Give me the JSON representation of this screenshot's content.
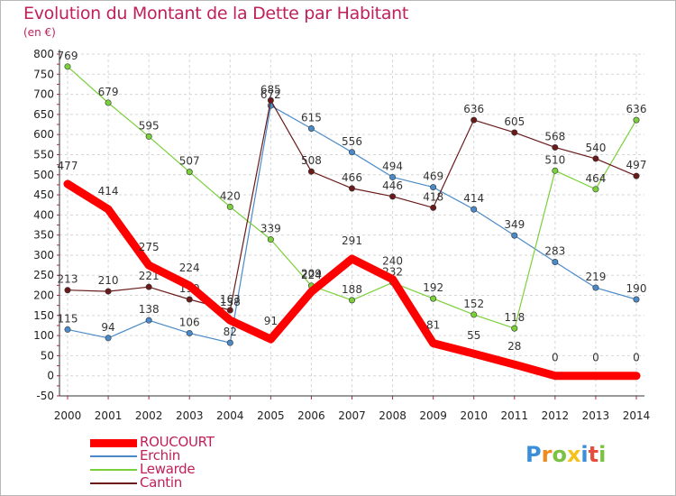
{
  "header": {
    "title": "Evolution du Montant de la Dette par Habitant",
    "unit": "(en €)"
  },
  "logo": {
    "text": "Proxiti",
    "letters": [
      {
        "ch": "P",
        "color": "#3a8fd8"
      },
      {
        "ch": "r",
        "color": "#f08a1e"
      },
      {
        "ch": "o",
        "color": "#7cc242"
      },
      {
        "ch": "x",
        "color": "#f5c21b"
      },
      {
        "ch": "i",
        "color": "#3a8fd8"
      },
      {
        "ch": "t",
        "color": "#e84c3d"
      },
      {
        "ch": "i",
        "color": "#7cc242"
      }
    ]
  },
  "chart_data": {
    "type": "line",
    "x": [
      "2000",
      "2001",
      "2002",
      "2003",
      "2004",
      "2005",
      "2006",
      "2007",
      "2008",
      "2009",
      "2010",
      "2011",
      "2012",
      "2013",
      "2014"
    ],
    "ylim": [
      -50,
      800
    ],
    "yticks": [
      -50,
      0,
      50,
      100,
      150,
      200,
      250,
      300,
      350,
      400,
      450,
      500,
      550,
      600,
      650,
      700,
      750,
      800
    ],
    "grid": true,
    "legend_position": "bottom-left",
    "series": [
      {
        "name": "ROUCOURT",
        "color": "#ff0000",
        "values": [
          477,
          414,
          275,
          224,
          138,
          91,
          209,
          291,
          240,
          81,
          55,
          28,
          0,
          0,
          0
        ]
      },
      {
        "name": "Erchin",
        "color": "#4a8ac8",
        "values": [
          115,
          94,
          138,
          106,
          82,
          672,
          615,
          556,
          494,
          469,
          414,
          349,
          283,
          219,
          190
        ]
      },
      {
        "name": "Lewarde",
        "color": "#7ad03a",
        "values": [
          769,
          679,
          595,
          507,
          420,
          339,
          224,
          188,
          232,
          192,
          152,
          118,
          510,
          464,
          636
        ]
      },
      {
        "name": "Cantin",
        "color": "#6b1a1a",
        "values": [
          213,
          210,
          221,
          190,
          163,
          685,
          508,
          466,
          446,
          418,
          636,
          605,
          568,
          540,
          497
        ]
      }
    ]
  }
}
